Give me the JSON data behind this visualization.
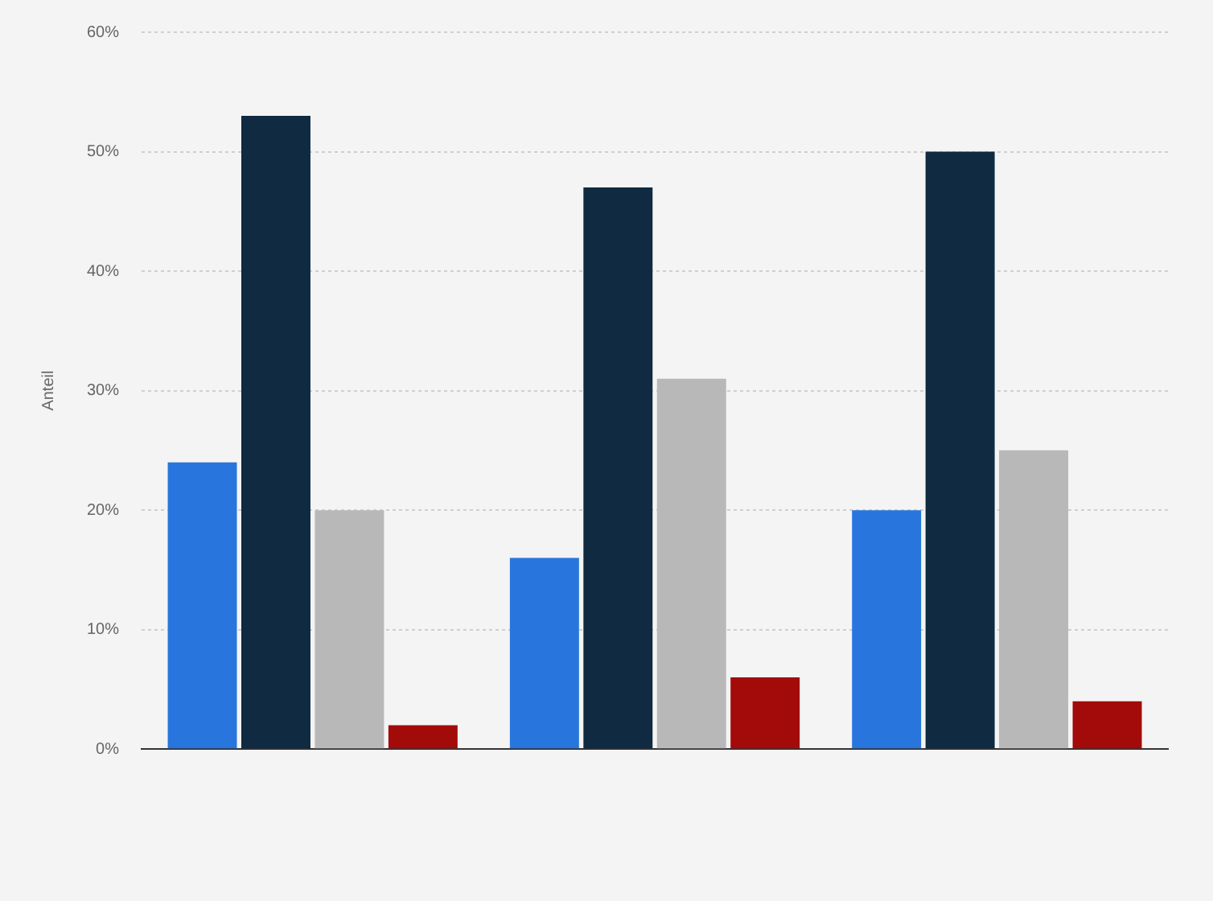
{
  "chart_data": {
    "type": "bar",
    "ylabel": "Anteil",
    "categories": [
      null,
      null,
      null
    ],
    "series": [
      {
        "color": "#2876dd",
        "values": [
          24,
          16,
          20
        ]
      },
      {
        "color": "#0f2a41",
        "values": [
          53,
          47,
          50
        ]
      },
      {
        "color": "#b8b8b8",
        "values": [
          20,
          31,
          25
        ]
      },
      {
        "color": "#a30a0a",
        "values": [
          2,
          6,
          4
        ]
      }
    ],
    "ylim": [
      0,
      60
    ],
    "yticks": [
      {
        "value": 0,
        "label": "0%"
      },
      {
        "value": 10,
        "label": "10%"
      },
      {
        "value": 20,
        "label": "20%"
      },
      {
        "value": 30,
        "label": "30%"
      },
      {
        "value": 40,
        "label": "40%"
      },
      {
        "value": 50,
        "label": "50%"
      },
      {
        "value": 60,
        "label": "60%"
      }
    ],
    "grid": "y",
    "legend": false
  }
}
